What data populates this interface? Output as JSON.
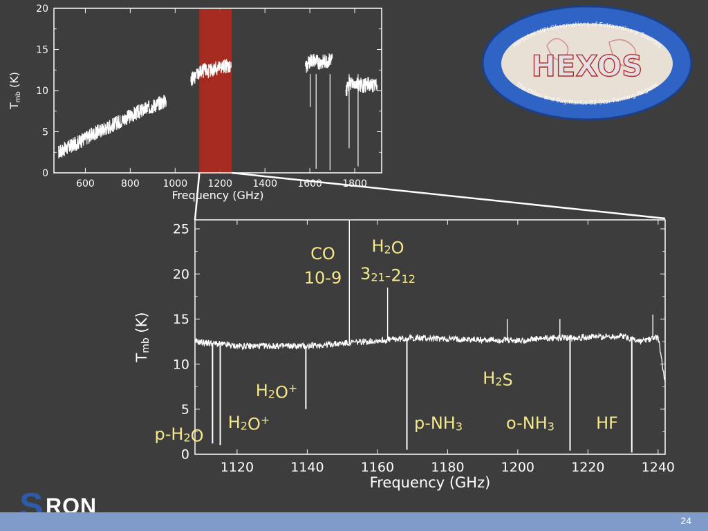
{
  "slide": {
    "page_number": "24",
    "logo_sron": {
      "first": "S",
      "rest": "RON"
    },
    "logo_hexos": {
      "title": "HEXOS",
      "top_text": "Herschel HIFI Observations of Extraordinary Sources",
      "bottom_text": "The Orion and Sagittarius B2 Star-Forming Regions"
    }
  },
  "colors": {
    "background": "#3d3d3d",
    "spectrum": "#ffffff",
    "highlight_band": "#b0291d",
    "label_yellow": "#f5e98a",
    "footer_bar": "#7f9bc9",
    "sron_blue": "#2f5aa8"
  },
  "chart_data": [
    {
      "type": "line",
      "xlabel": "Frequency (GHz)",
      "ylabel": "T_mb (K)",
      "xlim": [
        460,
        1920
      ],
      "ylim": [
        0,
        20
      ],
      "x_ticks": [
        600,
        800,
        1000,
        1200,
        1400,
        1600,
        1800
      ],
      "y_ticks": [
        0,
        5,
        10,
        15,
        20
      ],
      "highlight_band": [
        1108,
        1252
      ],
      "segments": [
        {
          "x": [
            480,
            560,
            640,
            720,
            800,
            880,
            960
          ],
          "y": [
            2.5,
            3.6,
            4.8,
            5.8,
            6.9,
            7.9,
            8.8
          ]
        },
        {
          "x": [
            1070,
            1090,
            1110,
            1130,
            1150,
            1170,
            1190,
            1210,
            1230,
            1250
          ],
          "y": [
            11.2,
            11.8,
            12.2,
            12.5,
            12.3,
            12.6,
            12.8,
            12.9,
            13.0,
            13.1
          ]
        },
        {
          "x": [
            1580,
            1600,
            1620,
            1640,
            1660,
            1680,
            1700
          ],
          "y": [
            12.6,
            13.6,
            13.7,
            13.4,
            13.5,
            13.6,
            13.9
          ]
        },
        {
          "x": [
            1760,
            1780,
            1800,
            1820,
            1840,
            1860,
            1880,
            1900
          ],
          "y": [
            10.0,
            10.9,
            11.0,
            10.8,
            10.5,
            10.9,
            10.6,
            10.7
          ]
        }
      ],
      "dips": [
        {
          "x": 1602,
          "y": 8.0
        },
        {
          "x": 1628,
          "y": 0.5
        },
        {
          "x": 1690,
          "y": 0.3
        },
        {
          "x": 1775,
          "y": 3.0
        },
        {
          "x": 1815,
          "y": 0.8
        }
      ]
    },
    {
      "type": "line",
      "xlabel": "Frequency (GHz)",
      "ylabel": "T_mb (K)",
      "xlim": [
        1108,
        1242
      ],
      "ylim": [
        0,
        26
      ],
      "x_ticks": [
        1120,
        1140,
        1160,
        1180,
        1200,
        1220,
        1240
      ],
      "y_ticks": [
        0,
        5,
        10,
        15,
        20,
        25
      ],
      "baseline": [
        {
          "x": 1108,
          "y": 12.5
        },
        {
          "x": 1120,
          "y": 12.0
        },
        {
          "x": 1140,
          "y": 12.0
        },
        {
          "x": 1150,
          "y": 12.3
        },
        {
          "x": 1160,
          "y": 12.6
        },
        {
          "x": 1170,
          "y": 12.9
        },
        {
          "x": 1180,
          "y": 12.8
        },
        {
          "x": 1190,
          "y": 12.7
        },
        {
          "x": 1200,
          "y": 12.6
        },
        {
          "x": 1210,
          "y": 12.9
        },
        {
          "x": 1220,
          "y": 13.0
        },
        {
          "x": 1230,
          "y": 13.1
        },
        {
          "x": 1235,
          "y": 12.5
        },
        {
          "x": 1240,
          "y": 13.0
        },
        {
          "x": 1242,
          "y": 8.0
        }
      ],
      "peaks": [
        {
          "x": 1152.0,
          "y": 26.5
        },
        {
          "x": 1162.9,
          "y": 18.5
        },
        {
          "x": 1197.0,
          "y": 15.0
        },
        {
          "x": 1212.0,
          "y": 15.0
        },
        {
          "x": 1238.5,
          "y": 15.5
        }
      ],
      "dips": [
        {
          "x": 1113.0,
          "y": 1.2
        },
        {
          "x": 1115.2,
          "y": 1.0
        },
        {
          "x": 1139.6,
          "y": 5.0
        },
        {
          "x": 1168.4,
          "y": 0.5
        },
        {
          "x": 1214.9,
          "y": 0.4
        },
        {
          "x": 1232.5,
          "y": 0.2
        }
      ],
      "annotations": [
        {
          "id": "co-line",
          "parts": [
            [
              "CO",
              ""
            ]
          ]
        },
        {
          "id": "co-transition",
          "parts": [
            [
              "10-9",
              ""
            ]
          ]
        },
        {
          "id": "h2o-line",
          "parts": [
            [
              "H",
              ""
            ],
            [
              "2",
              "sub"
            ],
            [
              "O",
              ""
            ]
          ]
        },
        {
          "id": "h2o-transition",
          "parts": [
            [
              "3",
              ""
            ],
            [
              "21",
              "sub"
            ],
            [
              "-2",
              ""
            ],
            [
              "12",
              "sub"
            ]
          ]
        },
        {
          "id": "h2o-plus-upper",
          "parts": [
            [
              "H",
              ""
            ],
            [
              "2",
              "sub"
            ],
            [
              "O",
              ""
            ],
            [
              "+",
              "sup"
            ]
          ]
        },
        {
          "id": "h2o-plus-lower",
          "parts": [
            [
              "H",
              ""
            ],
            [
              "2",
              "sub"
            ],
            [
              "O",
              ""
            ],
            [
              "+",
              "sup"
            ]
          ]
        },
        {
          "id": "p-h2o",
          "parts": [
            [
              "p-H",
              ""
            ],
            [
              "2",
              "sub"
            ],
            [
              "O",
              ""
            ]
          ]
        },
        {
          "id": "h2s",
          "parts": [
            [
              "H",
              ""
            ],
            [
              "2",
              "sub"
            ],
            [
              "S",
              ""
            ]
          ]
        },
        {
          "id": "p-nh3",
          "parts": [
            [
              "p-NH",
              ""
            ],
            [
              "3",
              "sub"
            ]
          ]
        },
        {
          "id": "o-nh3",
          "parts": [
            [
              "o-NH",
              ""
            ],
            [
              "3",
              "sub"
            ]
          ]
        },
        {
          "id": "hf",
          "parts": [
            [
              "HF",
              ""
            ]
          ]
        }
      ]
    }
  ]
}
